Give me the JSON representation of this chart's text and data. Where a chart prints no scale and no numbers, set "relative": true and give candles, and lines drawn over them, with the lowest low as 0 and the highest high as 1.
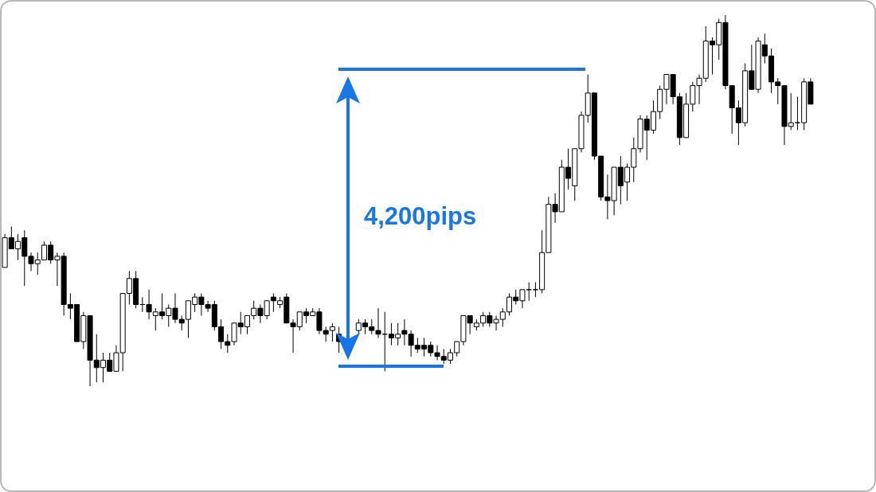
{
  "chart_data": {
    "type": "candlestick",
    "relative": true,
    "categories": [
      null,
      null,
      null,
      null,
      null,
      null,
      null,
      null,
      null,
      null,
      null,
      null,
      null,
      null,
      null,
      null,
      null,
      null,
      null,
      null,
      null,
      null,
      null,
      null,
      null,
      null,
      null,
      null,
      null,
      null,
      null,
      null,
      null,
      null,
      null,
      null,
      null,
      null,
      null,
      null,
      null,
      null,
      null,
      null,
      null,
      null,
      null,
      null,
      null,
      null,
      null,
      null,
      null,
      null,
      null,
      null,
      null,
      null,
      null,
      null,
      null,
      null,
      null,
      null,
      null,
      null,
      null,
      null,
      null,
      null,
      null,
      null,
      null,
      null,
      null,
      null,
      null,
      null,
      null,
      null,
      null,
      null,
      null,
      null,
      null,
      null,
      null,
      null,
      null,
      null,
      null,
      null,
      null,
      null,
      null,
      null,
      null,
      null,
      null,
      null,
      null,
      null,
      null,
      null,
      null,
      null,
      null,
      null,
      null,
      null,
      null,
      null,
      null,
      null,
      null,
      null,
      null,
      null,
      null,
      null,
      null,
      null,
      null,
      null
    ],
    "ohlc": [
      [
        0.32,
        0.41,
        0.32,
        0.4
      ],
      [
        0.4,
        0.43,
        0.37,
        0.37
      ],
      [
        0.37,
        0.41,
        0.34,
        0.39
      ],
      [
        0.4,
        0.42,
        0.27,
        0.35
      ],
      [
        0.35,
        0.36,
        0.31,
        0.33
      ],
      [
        0.33,
        0.36,
        0.3,
        0.34
      ],
      [
        0.34,
        0.39,
        0.34,
        0.38
      ],
      [
        0.38,
        0.39,
        0.33,
        0.34
      ],
      [
        0.34,
        0.36,
        0.27,
        0.35
      ],
      [
        0.35,
        0.36,
        0.19,
        0.22
      ],
      [
        0.22,
        0.25,
        0.18,
        0.21
      ],
      [
        0.22,
        0.22,
        0.12,
        0.12
      ],
      [
        0.12,
        0.2,
        0.1,
        0.19
      ],
      [
        0.19,
        0.19,
        0,
        0.07
      ],
      [
        0.07,
        0.14,
        0.01,
        0.05
      ],
      [
        0.05,
        0.09,
        0.01,
        0.07
      ],
      [
        0.07,
        0.09,
        0.04,
        0.04
      ],
      [
        0.04,
        0.11,
        0.04,
        0.09
      ],
      [
        0.09,
        0.25,
        0.04,
        0.25
      ],
      [
        0.25,
        0.31,
        0.22,
        0.29
      ],
      [
        0.29,
        0.31,
        0.21,
        0.22
      ],
      [
        0.22,
        0.24,
        0.2,
        0.22
      ],
      [
        0.22,
        0.26,
        0.18,
        0.2
      ],
      [
        0.19,
        0.21,
        0.15,
        0.2
      ],
      [
        0.2,
        0.25,
        0.18,
        0.19
      ],
      [
        0.19,
        0.22,
        0.16,
        0.21
      ],
      [
        0.21,
        0.25,
        0.17,
        0.18
      ],
      [
        0.18,
        0.19,
        0.15,
        0.17
      ],
      [
        0.18,
        0.23,
        0.13,
        0.23
      ],
      [
        0.22,
        0.25,
        0.2,
        0.24
      ],
      [
        0.24,
        0.25,
        0.19,
        0.22
      ],
      [
        0.22,
        0.23,
        0.2,
        0.21
      ],
      [
        0.22,
        0.23,
        0.15,
        0.16
      ],
      [
        0.16,
        0.18,
        0.1,
        0.12
      ],
      [
        0.12,
        0.14,
        0.09,
        0.11
      ],
      [
        0.12,
        0.17,
        0.11,
        0.17
      ],
      [
        0.17,
        0.2,
        0.14,
        0.16
      ],
      [
        0.16,
        0.19,
        0.14,
        0.19
      ],
      [
        0.19,
        0.23,
        0.18,
        0.21
      ],
      [
        0.21,
        0.22,
        0.17,
        0.19
      ],
      [
        0.19,
        0.23,
        0.18,
        0.23
      ],
      [
        0.24,
        0.25,
        0.2,
        0.23
      ],
      [
        0.22,
        0.24,
        0.21,
        0.23
      ],
      [
        0.24,
        0.25,
        0.17,
        0.17
      ],
      [
        0.17,
        0.18,
        0.09,
        0.16
      ],
      [
        0.16,
        0.2,
        0.15,
        0.2
      ],
      [
        0.2,
        0.21,
        0.17,
        0.19
      ],
      [
        0.19,
        0.21,
        0.19,
        0.2
      ],
      [
        0.2,
        0.21,
        0.14,
        0.15
      ],
      [
        0.15,
        0.16,
        0.12,
        0.14
      ],
      [
        0.15,
        0.17,
        0.12,
        0.16
      ],
      [
        0.14,
        0.16,
        0.09,
        0.12
      ],
      null,
      null,
      [
        0.15,
        0.18,
        0.14,
        0.17
      ],
      [
        0.17,
        0.18,
        0.14,
        0.16
      ],
      [
        0.16,
        0.18,
        0.14,
        0.15
      ],
      [
        0.15,
        0.21,
        0.13,
        0.14
      ],
      [
        0.14,
        0.2,
        0.04,
        0.14
      ],
      [
        0.14,
        0.17,
        0.11,
        0.13
      ],
      [
        0.13,
        0.17,
        0.11,
        0.14
      ],
      [
        0.15,
        0.18,
        0.11,
        0.14
      ],
      [
        0.14,
        0.15,
        0.08,
        0.11
      ],
      [
        0.11,
        0.13,
        0.09,
        0.1
      ],
      [
        0.11,
        0.13,
        0.08,
        0.1
      ],
      [
        0.11,
        0.12,
        0.08,
        0.09
      ],
      [
        0.09,
        0.11,
        0.07,
        0.08
      ],
      [
        0.08,
        0.1,
        0.06,
        0.07
      ],
      [
        0.07,
        0.1,
        0.06,
        0.09
      ],
      [
        0.09,
        0.12,
        0.08,
        0.12
      ],
      [
        0.12,
        0.19,
        0.11,
        0.19
      ],
      [
        0.19,
        0.19,
        0.14,
        0.17
      ],
      [
        0.16,
        0.18,
        0.15,
        0.17
      ],
      [
        0.17,
        0.2,
        0.16,
        0.19
      ],
      [
        0.19,
        0.2,
        0.16,
        0.17
      ],
      [
        0.17,
        0.19,
        0.15,
        0.18
      ],
      [
        0.18,
        0.21,
        0.16,
        0.2
      ],
      [
        0.2,
        0.25,
        0.19,
        0.24
      ],
      [
        0.24,
        0.26,
        0.22,
        0.23
      ],
      [
        0.23,
        0.26,
        0.21,
        0.26
      ],
      [
        0.26,
        0.28,
        0.23,
        0.26
      ],
      [
        0.26,
        0.28,
        0.24,
        0.26
      ],
      [
        0.26,
        0.42,
        0.25,
        0.36
      ],
      [
        0.36,
        0.51,
        0.36,
        0.49
      ],
      [
        0.49,
        0.52,
        0.44,
        0.47
      ],
      [
        0.47,
        0.61,
        0.47,
        0.59
      ],
      [
        0.59,
        0.64,
        0.53,
        0.56
      ],
      [
        0.54,
        0.64,
        0.5,
        0.64
      ],
      [
        0.64,
        0.74,
        0.63,
        0.73
      ],
      [
        0.73,
        0.84,
        0.71,
        0.79
      ],
      [
        0.79,
        0.79,
        0.61,
        0.62
      ],
      [
        0.62,
        0.62,
        0.5,
        0.51
      ],
      [
        0.51,
        0.57,
        0.45,
        0.5
      ],
      [
        0.5,
        0.59,
        0.46,
        0.59
      ],
      [
        0.59,
        0.62,
        0.49,
        0.54
      ],
      [
        0.55,
        0.6,
        0.5,
        0.59
      ],
      [
        0.59,
        0.67,
        0.55,
        0.64
      ],
      [
        0.64,
        0.73,
        0.63,
        0.72
      ],
      [
        0.72,
        0.73,
        0.61,
        0.69
      ],
      [
        0.69,
        0.77,
        0.68,
        0.74
      ],
      [
        0.74,
        0.81,
        0.72,
        0.8
      ],
      [
        0.8,
        0.84,
        0.76,
        0.84
      ],
      [
        0.84,
        0.84,
        0.76,
        0.78
      ],
      [
        0.78,
        0.79,
        0.65,
        0.67
      ],
      [
        0.67,
        0.79,
        0.67,
        0.76
      ],
      [
        0.76,
        0.82,
        0.74,
        0.81
      ],
      [
        0.81,
        0.84,
        0.76,
        0.83
      ],
      [
        0.83,
        0.97,
        0.82,
        0.93
      ],
      [
        0.93,
        0.94,
        0.84,
        0.92
      ],
      [
        0.92,
        0.99,
        0.88,
        0.98
      ],
      [
        0.98,
        1,
        0.8,
        0.81
      ],
      [
        0.81,
        0.81,
        0.68,
        0.75
      ],
      [
        0.75,
        0.77,
        0.65,
        0.71
      ],
      [
        0.71,
        0.87,
        0.7,
        0.85
      ],
      [
        0.85,
        0.92,
        0.8,
        0.8
      ],
      [
        0.8,
        0.94,
        0.79,
        0.93
      ],
      [
        0.92,
        0.95,
        0.87,
        0.89
      ],
      [
        0.89,
        0.91,
        0.79,
        0.82
      ],
      [
        0.82,
        0.83,
        0.76,
        0.81
      ],
      [
        0.81,
        0.81,
        0.65,
        0.7
      ],
      [
        0.7,
        0.79,
        0.69,
        0.71
      ],
      [
        0.71,
        0.78,
        0.69,
        0.71
      ],
      [
        0.71,
        0.83,
        0.69,
        0.82
      ],
      [
        0.82,
        0.83,
        0.76,
        0.76
      ]
    ],
    "annotations": [
      "4,200pips"
    ]
  }
}
